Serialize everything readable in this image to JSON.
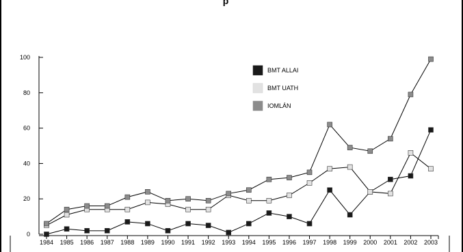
{
  "chart_data": {
    "type": "line",
    "title": "p",
    "xlabel": "",
    "ylabel": "",
    "x": [
      "1984",
      "1985",
      "1986",
      "1987",
      "1988",
      "1989",
      "1990",
      "1991",
      "1992",
      "1993",
      "1994",
      "1995",
      "1996",
      "1997",
      "1998",
      "1999",
      "2000",
      "2001",
      "2002",
      "2003"
    ],
    "ylim": [
      0,
      100
    ],
    "yticks": [
      0,
      20,
      40,
      60,
      80,
      100
    ],
    "grid": false,
    "legend_position": "top-center",
    "series": [
      {
        "name": "BMT ALLAI",
        "color": "#1a1a1a",
        "values": [
          0,
          3,
          2,
          2,
          7,
          6,
          2,
          6,
          5,
          1,
          6,
          12,
          10,
          6,
          25,
          11,
          24,
          31,
          33,
          59
        ]
      },
      {
        "name": "BMT UATH",
        "color": "#e2e2e2",
        "values": [
          5,
          11,
          14,
          14,
          14,
          18,
          17,
          14,
          14,
          22,
          19,
          19,
          22,
          29,
          37,
          38,
          24,
          23,
          46,
          37
        ]
      },
      {
        "name": "IOMLÁN",
        "color": "#8c8c8c",
        "values": [
          6,
          14,
          16,
          16,
          21,
          24,
          19,
          20,
          19,
          23,
          25,
          31,
          32,
          35,
          62,
          49,
          47,
          54,
          79,
          99
        ]
      }
    ]
  }
}
